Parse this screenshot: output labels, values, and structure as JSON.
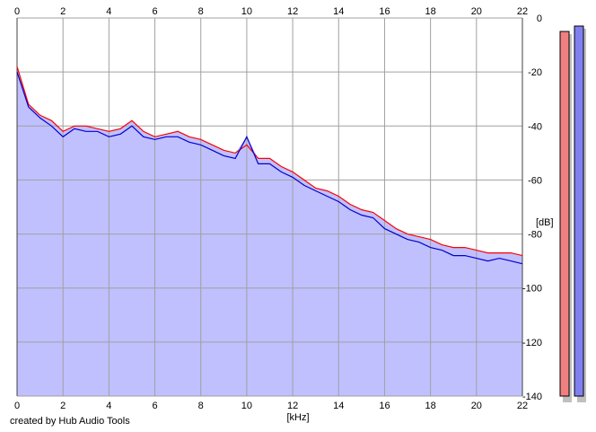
{
  "credit": "created by Hub Audio Tools",
  "chart_data": {
    "type": "area",
    "xlabel": "[kHz]",
    "ylabel": "[dB]",
    "xlim": [
      0,
      22
    ],
    "ylim": [
      -140,
      0
    ],
    "x_ticks": [
      0,
      2,
      4,
      6,
      8,
      10,
      12,
      14,
      16,
      18,
      20,
      22
    ],
    "y_ticks": [
      0,
      -20,
      -40,
      -60,
      -80,
      -100,
      -120,
      -140
    ],
    "grid": true,
    "colors": {
      "red_series": "#ff0000",
      "blue_series": "#0000cc",
      "fill": "#c0c0ff"
    },
    "x": [
      0,
      0.5,
      1,
      1.5,
      2,
      2.5,
      3,
      3.5,
      4,
      4.5,
      5,
      5.5,
      6,
      6.5,
      7,
      7.5,
      8,
      8.5,
      9,
      9.5,
      10,
      10.5,
      11,
      11.5,
      12,
      12.5,
      13,
      13.5,
      14,
      14.5,
      15,
      15.5,
      16,
      16.5,
      17,
      17.5,
      18,
      18.5,
      19,
      19.5,
      20,
      20.5,
      21,
      21.5,
      22
    ],
    "series": [
      {
        "values": [
          -18,
          -32,
          -36,
          -38,
          -42,
          -40,
          -40,
          -41,
          -42,
          -41,
          -38,
          -42,
          -44,
          -43,
          -42,
          -44,
          -45,
          -47,
          -49,
          -50,
          -47,
          -52,
          -52,
          -55,
          -57,
          -60,
          -63,
          -64,
          -66,
          -69,
          -71,
          -72,
          -75,
          -78,
          -80,
          -81,
          -82,
          -84,
          -85,
          -85,
          -86,
          -87,
          -87,
          -87,
          -88
        ]
      },
      {
        "values": [
          -20,
          -33,
          -37,
          -40,
          -44,
          -41,
          -42,
          -42,
          -44,
          -43,
          -40,
          -44,
          -45,
          -44,
          -44,
          -46,
          -47,
          -49,
          -51,
          -52,
          -44,
          -54,
          -54,
          -57,
          -59,
          -62,
          -64,
          -66,
          -68,
          -71,
          -73,
          -74,
          -78,
          -80,
          -82,
          -83,
          -85,
          -86,
          -88,
          -88,
          -89,
          -90,
          -89,
          -90,
          -91
        ]
      }
    ],
    "level_meters": [
      {
        "level_db": -5
      },
      {
        "level_db": -3
      }
    ]
  }
}
